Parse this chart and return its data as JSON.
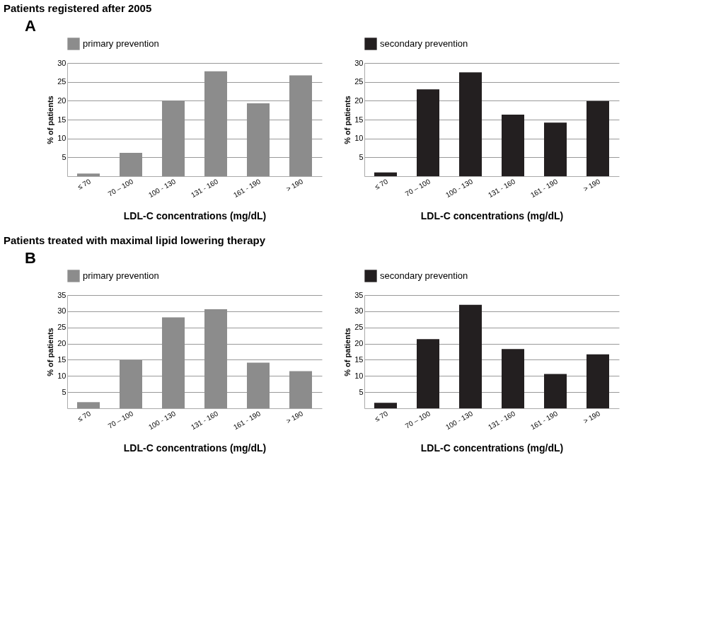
{
  "chart_data": [
    {
      "type": "bar",
      "title": "Patients registered after 2005",
      "annotations": [
        "A"
      ],
      "categories": [
        "≤ 70",
        "70 – 100",
        "100 - 130",
        "131 - 160",
        "161 - 190",
        "> 190"
      ],
      "xlabel": "LDL-C concentrations (mg/dL)",
      "ylabel": "% of patients",
      "ylim": [
        0,
        30
      ],
      "yticks": [
        5,
        10,
        15,
        20,
        25,
        30
      ],
      "grid": "y",
      "legend": "top",
      "series": [
        {
          "name": "primary prevention",
          "color": "#8c8c8c",
          "values": [
            0.7,
            6.2,
            20,
            27.8,
            19.3,
            26.7
          ]
        }
      ]
    },
    {
      "type": "bar",
      "categories": [
        "≤ 70",
        "70 – 100",
        "100 - 130",
        "131 - 160",
        "161 - 190",
        "> 190"
      ],
      "xlabel": "LDL-C concentrations (mg/dL)",
      "ylabel": "% of patients",
      "ylim": [
        0,
        30
      ],
      "yticks": [
        5,
        10,
        15,
        20,
        25,
        30
      ],
      "grid": "y",
      "legend": "top",
      "series": [
        {
          "name": "secondary prevention",
          "color": "#231f20",
          "values": [
            1.0,
            23.0,
            27.5,
            16.3,
            14.2,
            19.9
          ]
        }
      ]
    },
    {
      "type": "bar",
      "title": "Patients treated with maximal lipid lowering therapy",
      "annotations": [
        "B"
      ],
      "categories": [
        "≤ 70",
        "70 – 100",
        "100 - 130",
        "131 - 160",
        "161 - 190",
        "> 190"
      ],
      "xlabel": "LDL-C concentrations (mg/dL)",
      "ylabel": "% of patients",
      "ylim": [
        0,
        35
      ],
      "yticks": [
        5,
        10,
        15,
        20,
        25,
        30,
        35
      ],
      "grid": "y",
      "legend": "top",
      "series": [
        {
          "name": "primary prevention",
          "color": "#8c8c8c",
          "values": [
            1.9,
            14.9,
            28.1,
            30.6,
            14.1,
            11.5
          ]
        }
      ]
    },
    {
      "type": "bar",
      "categories": [
        "≤ 70",
        "70 – 100",
        "100 - 130",
        "131 - 160",
        "161 - 190",
        "> 190"
      ],
      "xlabel": "LDL-C concentrations (mg/dL)",
      "ylabel": "% of patients",
      "ylim": [
        0,
        35
      ],
      "yticks": [
        5,
        10,
        15,
        20,
        25,
        30,
        35
      ],
      "grid": "y",
      "legend": "top",
      "series": [
        {
          "name": "secondary prevention",
          "color": "#231f20",
          "values": [
            1.7,
            21.4,
            32.0,
            18.3,
            10.6,
            16.7
          ]
        }
      ]
    }
  ]
}
